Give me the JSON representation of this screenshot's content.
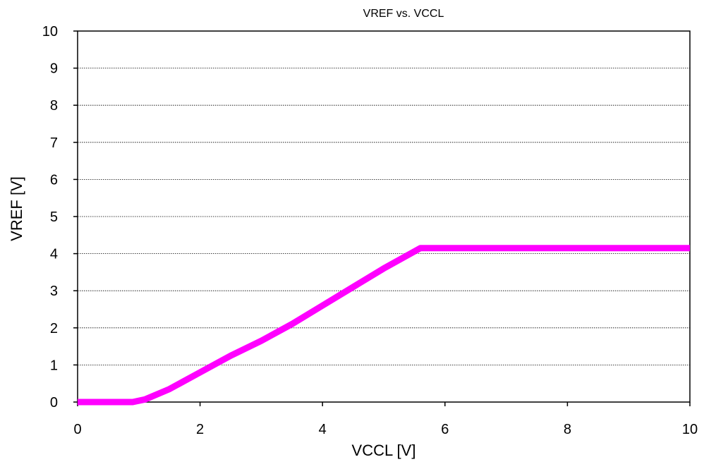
{
  "chart_data": {
    "type": "line",
    "title": "VREF vs. VCCL",
    "xlabel": "VCCL [V]",
    "ylabel": "VREF [V]",
    "xlim": [
      0,
      10
    ],
    "ylim": [
      0,
      10
    ],
    "xticks": [
      0,
      2,
      4,
      6,
      8,
      10
    ],
    "yticks": [
      0,
      1,
      2,
      3,
      4,
      5,
      6,
      7,
      8,
      9,
      10
    ],
    "grid": {
      "horizontal": true,
      "vertical": false,
      "style": "dotted"
    },
    "series": [
      {
        "color": "#ff00ff",
        "x": [
          0,
          0.9,
          1.1,
          1.5,
          2.0,
          2.5,
          3.0,
          3.5,
          4.0,
          4.5,
          5.0,
          5.6,
          6.0,
          8.0,
          10.0
        ],
        "y": [
          0,
          0,
          0.07,
          0.35,
          0.8,
          1.25,
          1.65,
          2.1,
          2.6,
          3.1,
          3.6,
          4.15,
          4.15,
          4.15,
          4.15
        ]
      }
    ]
  }
}
